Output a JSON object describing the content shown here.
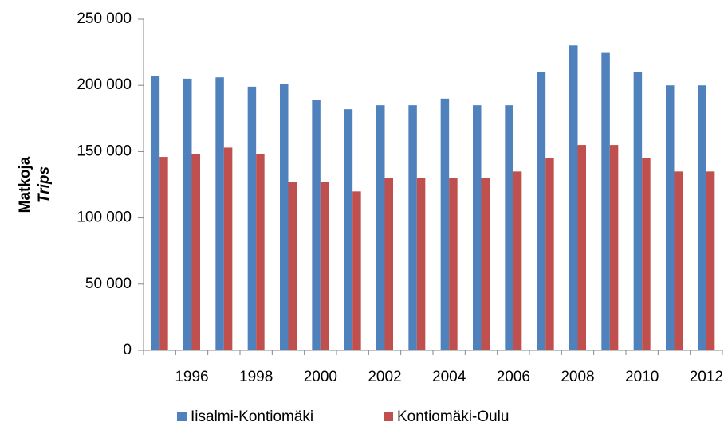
{
  "chart_data": {
    "type": "bar",
    "ylabel": "Matkoja",
    "ylabel2": "Trips",
    "categories": [
      null,
      "1996",
      null,
      "1998",
      null,
      "2000",
      null,
      "2002",
      null,
      "2004",
      null,
      "2006",
      null,
      "2008",
      null,
      "2010",
      null,
      "2012"
    ],
    "series": [
      {
        "name": "Iisalmi-Kontiomäki",
        "color": "#4f81bd",
        "values": [
          207000,
          205000,
          206000,
          199000,
          201000,
          189000,
          182000,
          185000,
          185000,
          190000,
          185000,
          185000,
          210000,
          230000,
          225000,
          210000,
          200000,
          200000
        ]
      },
      {
        "name": "Kontiomäki-Oulu",
        "color": "#c0504d",
        "values": [
          146000,
          148000,
          153000,
          148000,
          127000,
          127000,
          120000,
          130000,
          130000,
          130000,
          130000,
          135000,
          145000,
          155000,
          155000,
          145000,
          135000,
          135000
        ]
      }
    ],
    "ylim": [
      0,
      250000
    ],
    "yticks": [
      0,
      {
        "value": 50000,
        "label": "50 000"
      },
      {
        "value": 100000,
        "label": "100 000"
      },
      {
        "value": 150000,
        "label": "150 000"
      },
      {
        "value": 200000,
        "label": "200 000"
      },
      {
        "value": 250000,
        "label": "250 000"
      }
    ],
    "grid": false,
    "legend": "bottom"
  }
}
